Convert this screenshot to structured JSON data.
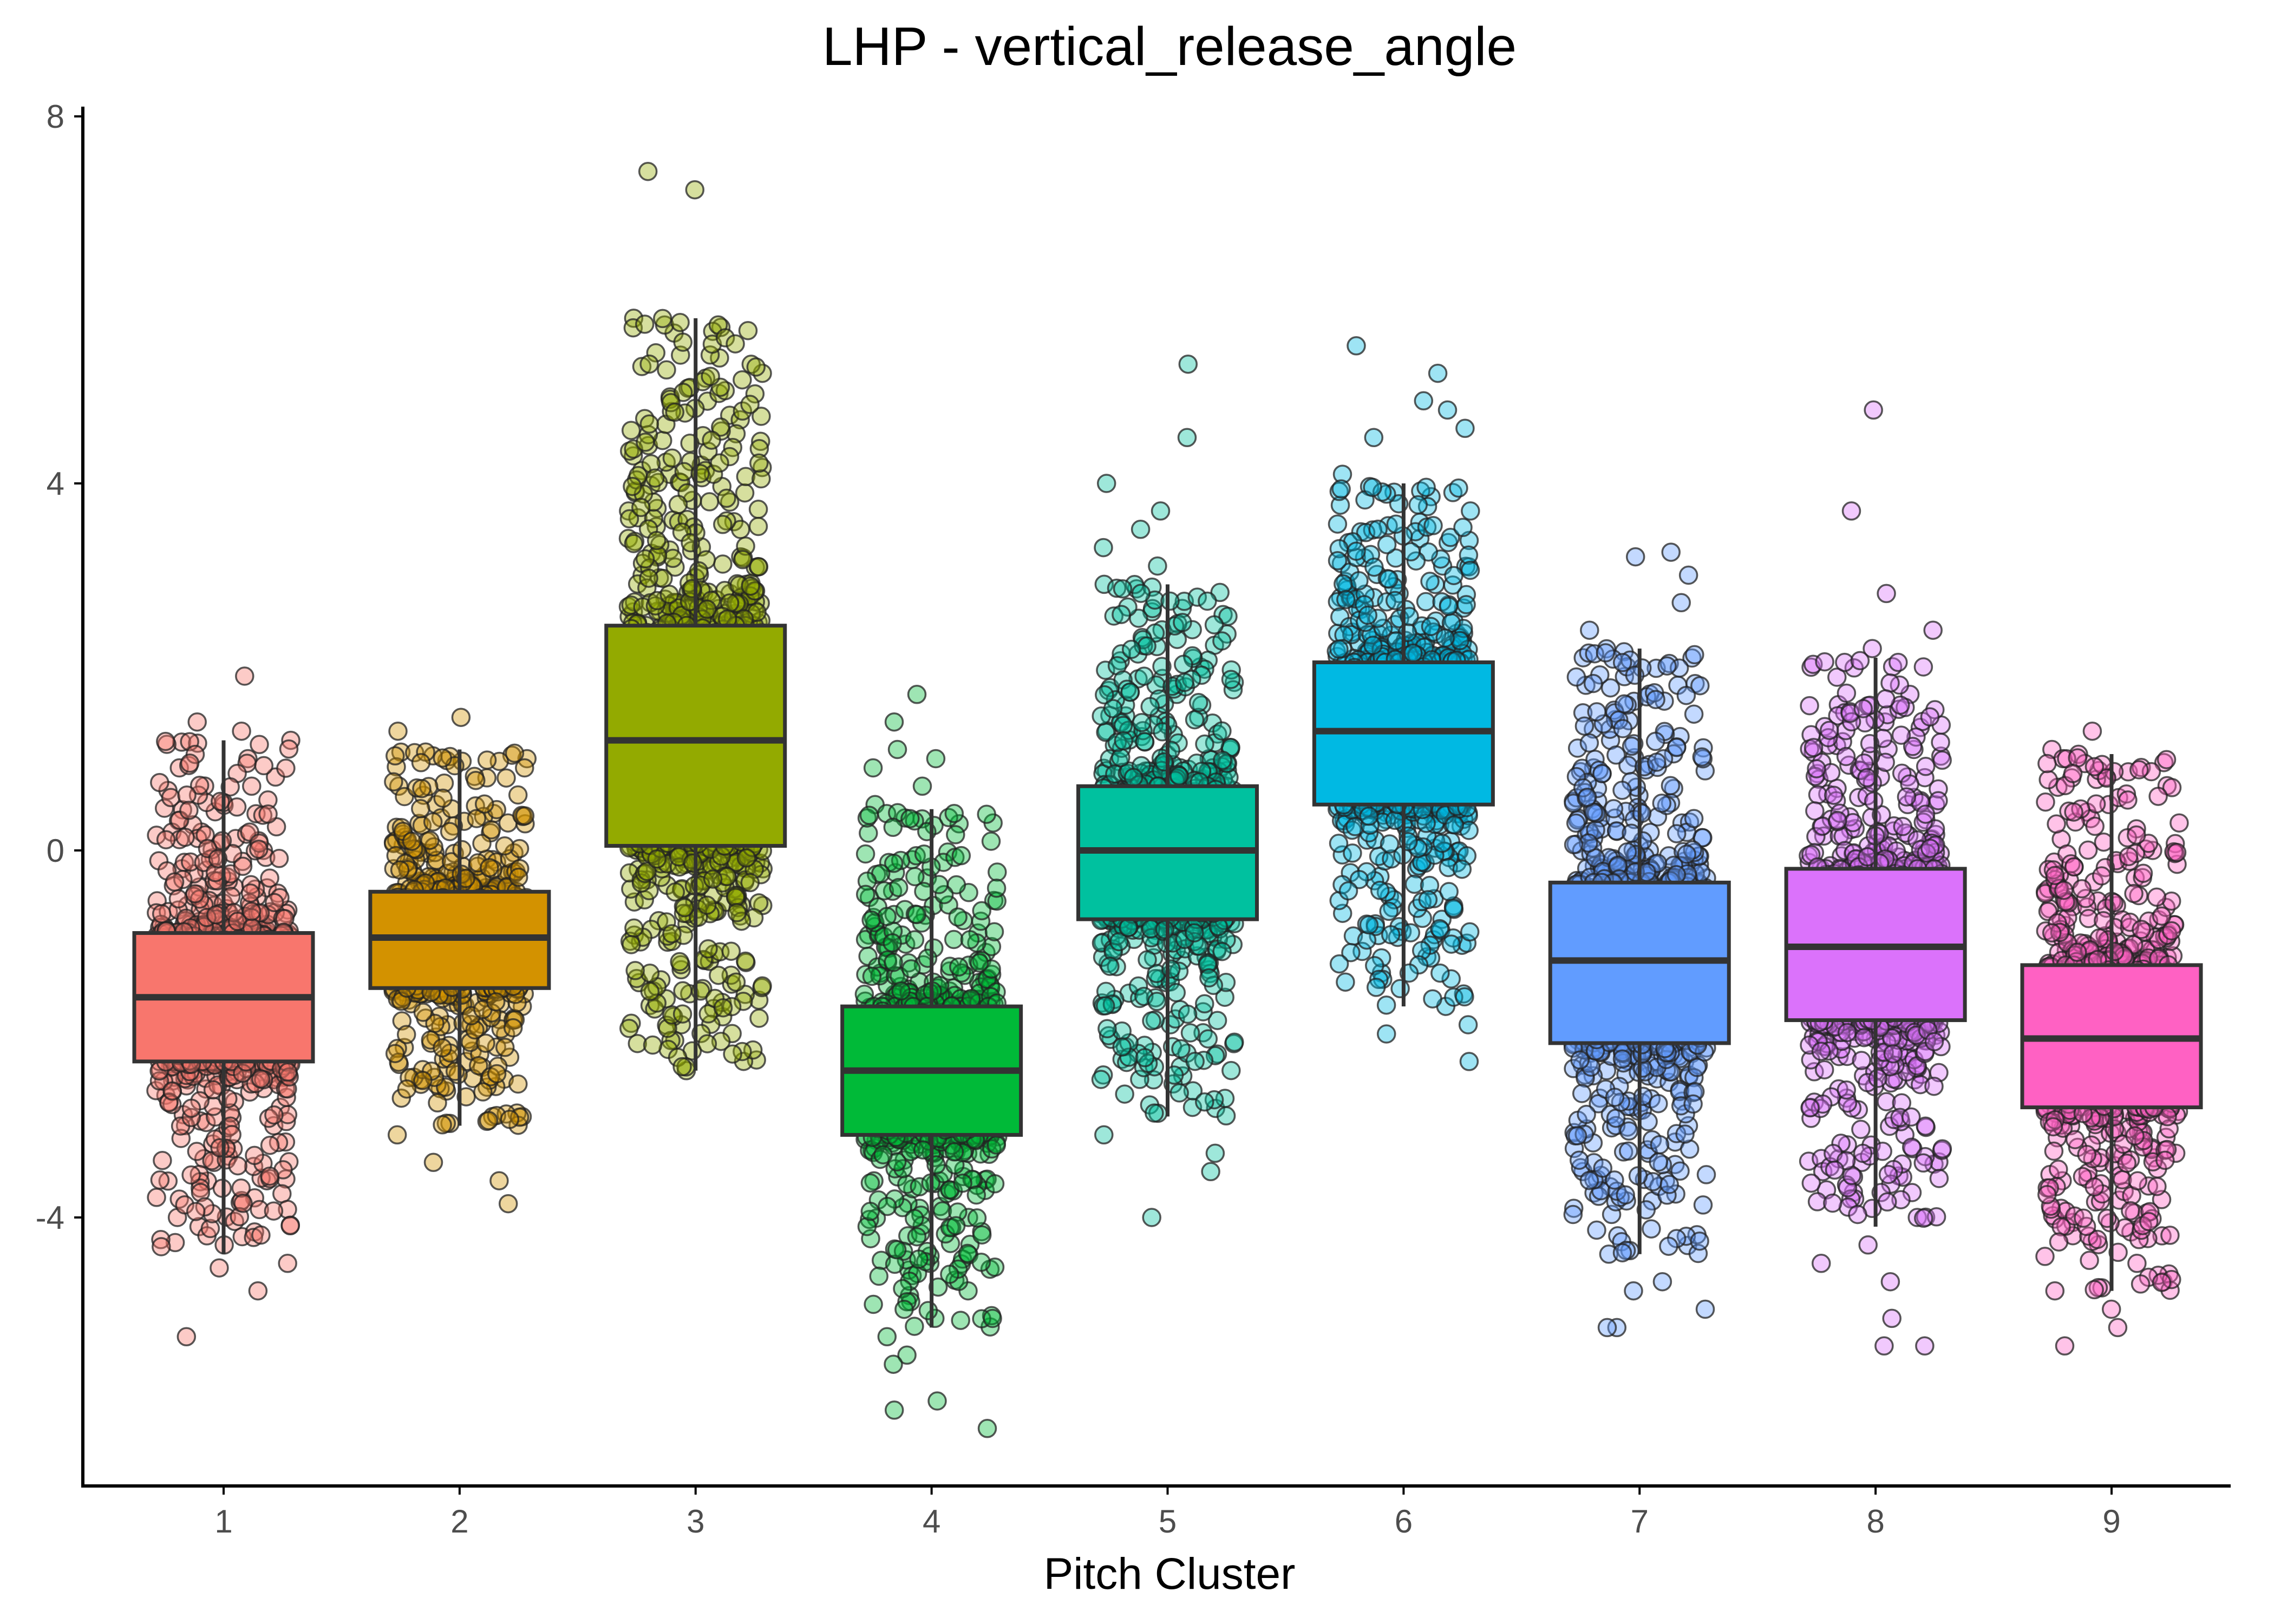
{
  "chart_data": {
    "type": "boxplot",
    "title": "LHP - vertical_release_angle",
    "xlabel": "Pitch Cluster",
    "ylabel": "",
    "ylim": [
      -7.0,
      8.0
    ],
    "yticks": [
      -4,
      0,
      4,
      8
    ],
    "yticklabels": [
      "-4",
      "0",
      "4",
      "8"
    ],
    "grid": false,
    "legend": "none",
    "overlay": "jittered points",
    "categories": [
      "1",
      "2",
      "3",
      "4",
      "5",
      "6",
      "7",
      "8",
      "9"
    ],
    "colors": [
      "#F8766D",
      "#D39200",
      "#93AA00",
      "#00BA38",
      "#00C19F",
      "#00B9E3",
      "#619CFF",
      "#DB72FB",
      "#FF61C3"
    ],
    "boxes": [
      {
        "category": "1",
        "whisker_low": -4.4,
        "q1": -2.3,
        "median": -1.6,
        "q3": -0.9,
        "whisker_high": 1.2
      },
      {
        "category": "2",
        "whisker_low": -3.0,
        "q1": -1.5,
        "median": -0.95,
        "q3": -0.45,
        "whisker_high": 1.1
      },
      {
        "category": "3",
        "whisker_low": -2.4,
        "q1": 0.05,
        "median": 1.2,
        "q3": 2.45,
        "whisker_high": 5.8
      },
      {
        "category": "4",
        "whisker_low": -5.2,
        "q1": -3.1,
        "median": -2.4,
        "q3": -1.7,
        "whisker_high": 0.45
      },
      {
        "category": "5",
        "whisker_low": -2.9,
        "q1": -0.75,
        "median": 0.0,
        "q3": 0.7,
        "whisker_high": 2.9
      },
      {
        "category": "6",
        "whisker_low": -1.7,
        "q1": 0.5,
        "median": 1.3,
        "q3": 2.05,
        "whisker_high": 4.0
      },
      {
        "category": "7",
        "whisker_low": -4.4,
        "q1": -2.1,
        "median": -1.2,
        "q3": -0.35,
        "whisker_high": 2.2
      },
      {
        "category": "8",
        "whisker_low": -4.1,
        "q1": -1.85,
        "median": -1.05,
        "q3": -0.2,
        "whisker_high": 2.1
      },
      {
        "category": "9",
        "whisker_low": -4.8,
        "q1": -2.8,
        "median": -2.05,
        "q3": -1.25,
        "whisker_high": 1.05
      }
    ],
    "points": [
      {
        "category": "1",
        "values": [
          1.9,
          1.4,
          1.3,
          1.2,
          1.0,
          0.95,
          0.9,
          0.8,
          0.7,
          0.55,
          0.4,
          0.2,
          0.0,
          -0.2,
          -0.4,
          -0.6,
          -0.8,
          -1.0,
          -1.2,
          -1.4,
          -1.6,
          -1.8,
          -2.0,
          -2.2,
          -2.4,
          -2.6,
          -2.8,
          -3.0,
          -3.2,
          -3.4,
          -3.6,
          -3.8,
          -4.0,
          -4.1,
          -4.2,
          -4.3,
          -4.5,
          -4.55,
          -4.8,
          -5.3
        ]
      },
      {
        "category": "2",
        "values": [
          1.45,
          1.3,
          1.0,
          0.9,
          0.7,
          0.5,
          0.3,
          0.1,
          -0.1,
          -0.3,
          -0.5,
          -0.7,
          -0.9,
          -1.1,
          -1.3,
          -1.5,
          -1.7,
          -1.9,
          -2.1,
          -2.3,
          -2.5,
          -2.7,
          -2.9,
          -3.1,
          -3.4,
          -3.6,
          -3.85
        ]
      },
      {
        "category": "3",
        "values": [
          7.4,
          7.2,
          5.8,
          5.7,
          5.2,
          4.2,
          4.1,
          3.9,
          3.8,
          3.7,
          3.6,
          3.4,
          3.2,
          3.0,
          2.9,
          2.8,
          2.6,
          2.4,
          2.2,
          2.0,
          1.8,
          1.6,
          1.4,
          1.2,
          1.0,
          0.8,
          0.6,
          0.4,
          0.2,
          0.0,
          -0.2,
          -0.4,
          -0.6,
          -0.8,
          -1.0,
          -1.2,
          -1.3,
          -1.9,
          -2.4
        ]
      },
      {
        "category": "4",
        "values": [
          1.7,
          1.4,
          1.1,
          1.0,
          0.9,
          0.7,
          0.5,
          0.3,
          0.1,
          -0.1,
          -0.3,
          -0.6,
          -0.9,
          -1.2,
          -1.5,
          -1.8,
          -2.1,
          -2.4,
          -2.7,
          -3.0,
          -3.3,
          -3.6,
          -3.9,
          -4.2,
          -4.5,
          -4.8,
          -5.1,
          -5.3,
          -5.5,
          -5.6,
          -6.0,
          -6.1,
          -6.3
        ]
      },
      {
        "category": "5",
        "values": [
          5.3,
          4.5,
          4.0,
          3.7,
          3.5,
          3.3,
          3.1,
          2.9,
          2.6,
          2.3,
          2.0,
          1.7,
          1.4,
          1.1,
          0.8,
          0.5,
          0.2,
          -0.1,
          -0.4,
          -0.7,
          -1.0,
          -1.3,
          -1.6,
          -1.9,
          -2.2,
          -2.5,
          -2.8,
          -3.1,
          -3.3,
          -3.5,
          -4.0
        ]
      },
      {
        "category": "6",
        "values": [
          5.5,
          5.2,
          4.9,
          4.8,
          4.6,
          4.5,
          4.1,
          3.9,
          3.7,
          3.4,
          3.1,
          2.8,
          2.5,
          2.2,
          1.9,
          1.6,
          1.3,
          1.0,
          0.7,
          0.4,
          0.1,
          -0.2,
          -0.5,
          -0.8,
          -1.1,
          -1.4,
          -1.7,
          -1.9,
          -2.0,
          -2.3
        ]
      },
      {
        "category": "7",
        "values": [
          3.25,
          3.2,
          3.0,
          2.7,
          2.4,
          2.1,
          1.8,
          1.5,
          1.2,
          0.9,
          0.6,
          0.3,
          0.0,
          -0.3,
          -0.6,
          -0.9,
          -1.2,
          -1.5,
          -1.8,
          -2.1,
          -2.4,
          -2.7,
          -3.0,
          -3.3,
          -3.6,
          -3.9,
          -4.2,
          -4.4,
          -4.7,
          -4.8,
          -5.0,
          -5.2,
          -5.2
        ]
      },
      {
        "category": "8",
        "values": [
          4.8,
          3.7,
          2.8,
          2.4,
          2.2,
          2.0,
          1.7,
          1.4,
          1.1,
          0.8,
          0.5,
          0.2,
          -0.1,
          -0.4,
          -0.7,
          -1.0,
          -1.3,
          -1.6,
          -1.9,
          -2.2,
          -2.5,
          -2.8,
          -3.1,
          -3.4,
          -3.7,
          -4.0,
          -4.3,
          -4.5,
          -4.7,
          -5.1,
          -5.4,
          -5.4
        ]
      },
      {
        "category": "9",
        "values": [
          1.3,
          1.1,
          1.0,
          0.8,
          0.5,
          0.3,
          0.0,
          -0.3,
          -0.6,
          -0.9,
          -1.2,
          -1.5,
          -1.8,
          -2.1,
          -2.4,
          -2.7,
          -3.0,
          -3.3,
          -3.6,
          -3.9,
          -4.2,
          -4.5,
          -4.7,
          -4.8,
          -5.0,
          -5.2,
          -5.4
        ]
      }
    ]
  }
}
